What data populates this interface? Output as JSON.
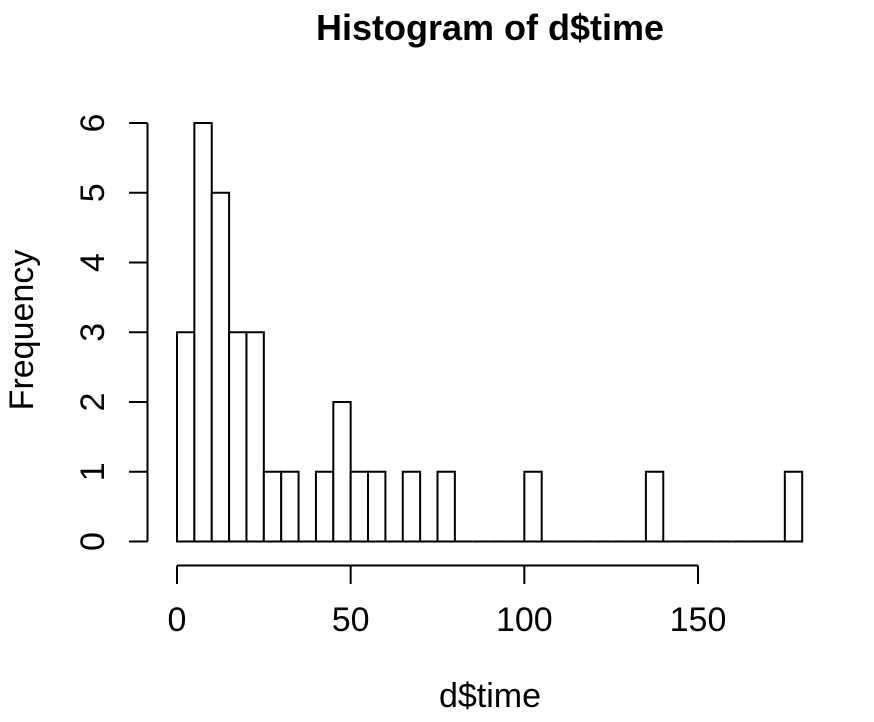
{
  "page": {
    "background_color": "#ffffff",
    "text_color": "#000000"
  },
  "chart_data": {
    "type": "bar",
    "subtype": "histogram",
    "title": "Histogram of d$time",
    "xlabel": "d$time",
    "ylabel": "Frequency",
    "bin_start": 0,
    "bin_width": 5,
    "counts": [
      3,
      6,
      5,
      3,
      3,
      1,
      1,
      0,
      1,
      2,
      1,
      1,
      0,
      1,
      0,
      1,
      0,
      0,
      0,
      0,
      1,
      0,
      0,
      0,
      0,
      0,
      0,
      1,
      0,
      0,
      0,
      0,
      0,
      0,
      0,
      1
    ],
    "bins_extent": [
      0,
      180
    ],
    "x_ticks": [
      0,
      50,
      100,
      150
    ],
    "y_ticks": [
      0,
      1,
      2,
      3,
      4,
      5,
      6
    ],
    "xlim": [
      0,
      150
    ],
    "ylim": [
      0,
      6
    ],
    "grid": false,
    "legend": "none",
    "bar_fill": "#ffffff",
    "bar_stroke": "#000000",
    "axis_color": "#000000"
  }
}
